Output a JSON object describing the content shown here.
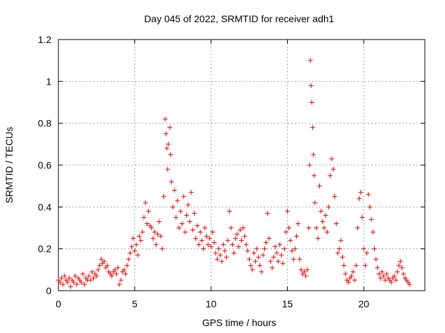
{
  "chart_data": {
    "type": "scatter",
    "title": "Day 045 of 2022, SRMTID for receiver adh1",
    "xlabel": "GPS time / hours",
    "ylabel": "SRMTID / TECUs",
    "xlim": [
      0,
      24
    ],
    "ylim": [
      0,
      1.2
    ],
    "x_ticks": [
      0,
      5,
      10,
      15,
      20
    ],
    "x_tick_labels": [
      "0",
      "5",
      "10",
      "15",
      "20"
    ],
    "y_ticks": [
      0,
      0.2,
      0.4,
      0.6,
      0.8,
      1.0,
      1.2
    ],
    "y_tick_labels": [
      "0",
      "0.2",
      "0.4",
      "0.6",
      "0.8",
      "1",
      "1.2"
    ],
    "grid": true,
    "marker": "+",
    "color": "#e00000",
    "series": [
      {
        "name": "adh1",
        "points": [
          [
            0.0,
            0.05
          ],
          [
            0.1,
            0.04
          ],
          [
            0.2,
            0.06
          ],
          [
            0.3,
            0.03
          ],
          [
            0.4,
            0.07
          ],
          [
            0.5,
            0.05
          ],
          [
            0.6,
            0.04
          ],
          [
            0.7,
            0.06
          ],
          [
            0.8,
            0.02
          ],
          [
            0.9,
            0.05
          ],
          [
            1.0,
            0.04
          ],
          [
            1.1,
            0.07
          ],
          [
            1.2,
            0.03
          ],
          [
            1.3,
            0.06
          ],
          [
            1.4,
            0.05
          ],
          [
            1.5,
            0.04
          ],
          [
            1.6,
            0.08
          ],
          [
            1.7,
            0.03
          ],
          [
            1.8,
            0.06
          ],
          [
            1.9,
            0.05
          ],
          [
            2.0,
            0.07
          ],
          [
            2.1,
            0.05
          ],
          [
            2.2,
            0.09
          ],
          [
            2.3,
            0.06
          ],
          [
            2.4,
            0.08
          ],
          [
            2.5,
            0.07
          ],
          [
            2.6,
            0.1
          ],
          [
            2.7,
            0.12
          ],
          [
            2.8,
            0.15
          ],
          [
            2.9,
            0.13
          ],
          [
            3.0,
            0.14
          ],
          [
            3.1,
            0.11
          ],
          [
            3.2,
            0.12
          ],
          [
            3.3,
            0.09
          ],
          [
            3.4,
            0.08
          ],
          [
            3.5,
            0.07
          ],
          [
            3.6,
            0.09
          ],
          [
            3.7,
            0.1
          ],
          [
            3.8,
            0.08
          ],
          [
            3.9,
            0.11
          ],
          [
            4.0,
            0.03
          ],
          [
            4.1,
            0.05
          ],
          [
            4.2,
            0.09
          ],
          [
            4.3,
            0.1
          ],
          [
            4.4,
            0.08
          ],
          [
            4.5,
            0.12
          ],
          [
            4.6,
            0.15
          ],
          [
            4.7,
            0.18
          ],
          [
            4.8,
            0.21
          ],
          [
            4.9,
            0.25
          ],
          [
            5.0,
            0.19
          ],
          [
            5.1,
            0.22
          ],
          [
            5.2,
            0.17
          ],
          [
            5.3,
            0.26
          ],
          [
            5.4,
            0.24
          ],
          [
            5.5,
            0.28
          ],
          [
            5.6,
            0.35
          ],
          [
            5.7,
            0.42
          ],
          [
            5.8,
            0.32
          ],
          [
            5.9,
            0.38
          ],
          [
            6.0,
            0.31
          ],
          [
            6.1,
            0.3
          ],
          [
            6.2,
            0.25
          ],
          [
            6.3,
            0.28
          ],
          [
            6.4,
            0.22
          ],
          [
            6.5,
            0.27
          ],
          [
            6.6,
            0.33
          ],
          [
            6.7,
            0.26
          ],
          [
            6.8,
            0.2
          ],
          [
            6.9,
            0.45
          ],
          [
            7.0,
            0.82
          ],
          [
            7.05,
            0.75
          ],
          [
            7.1,
            0.68
          ],
          [
            7.15,
            0.58
          ],
          [
            7.2,
            0.7
          ],
          [
            7.3,
            0.78
          ],
          [
            7.35,
            0.65
          ],
          [
            7.4,
            0.52
          ],
          [
            7.5,
            0.4
          ],
          [
            7.6,
            0.48
          ],
          [
            7.7,
            0.35
          ],
          [
            7.8,
            0.43
          ],
          [
            7.9,
            0.3
          ],
          [
            8.0,
            0.38
          ],
          [
            8.1,
            0.32
          ],
          [
            8.2,
            0.45
          ],
          [
            8.3,
            0.28
          ],
          [
            8.4,
            0.36
          ],
          [
            8.5,
            0.41
          ],
          [
            8.6,
            0.33
          ],
          [
            8.7,
            0.47
          ],
          [
            8.8,
            0.29
          ],
          [
            8.9,
            0.37
          ],
          [
            9.0,
            0.25
          ],
          [
            9.1,
            0.31
          ],
          [
            9.2,
            0.22
          ],
          [
            9.3,
            0.28
          ],
          [
            9.4,
            0.24
          ],
          [
            9.5,
            0.2
          ],
          [
            9.6,
            0.3
          ],
          [
            9.7,
            0.26
          ],
          [
            9.8,
            0.22
          ],
          [
            9.9,
            0.25
          ],
          [
            10.0,
            0.21
          ],
          [
            10.1,
            0.28
          ],
          [
            10.2,
            0.23
          ],
          [
            10.3,
            0.18
          ],
          [
            10.4,
            0.15
          ],
          [
            10.5,
            0.2
          ],
          [
            10.6,
            0.17
          ],
          [
            10.7,
            0.14
          ],
          [
            10.8,
            0.22
          ],
          [
            10.9,
            0.19
          ],
          [
            11.0,
            0.16
          ],
          [
            11.1,
            0.24
          ],
          [
            11.2,
            0.38
          ],
          [
            11.3,
            0.3
          ],
          [
            11.4,
            0.22
          ],
          [
            11.5,
            0.18
          ],
          [
            11.6,
            0.25
          ],
          [
            11.7,
            0.27
          ],
          [
            11.8,
            0.21
          ],
          [
            11.9,
            0.29
          ],
          [
            12.0,
            0.24
          ],
          [
            12.1,
            0.3
          ],
          [
            12.2,
            0.26
          ],
          [
            12.3,
            0.22
          ],
          [
            12.4,
            0.19
          ],
          [
            12.5,
            0.15
          ],
          [
            12.6,
            0.12
          ],
          [
            12.7,
            0.1
          ],
          [
            12.8,
            0.18
          ],
          [
            12.9,
            0.14
          ],
          [
            13.0,
            0.2
          ],
          [
            13.1,
            0.16
          ],
          [
            13.2,
            0.12
          ],
          [
            13.3,
            0.09
          ],
          [
            13.4,
            0.17
          ],
          [
            13.5,
            0.2
          ],
          [
            13.6,
            0.23
          ],
          [
            13.7,
            0.37
          ],
          [
            13.8,
            0.25
          ],
          [
            13.9,
            0.14
          ],
          [
            14.0,
            0.11
          ],
          [
            14.1,
            0.16
          ],
          [
            14.2,
            0.21
          ],
          [
            14.3,
            0.18
          ],
          [
            14.4,
            0.14
          ],
          [
            14.5,
            0.22
          ],
          [
            14.6,
            0.17
          ],
          [
            14.7,
            0.13
          ],
          [
            14.8,
            0.2
          ],
          [
            14.9,
            0.28
          ],
          [
            15.0,
            0.38
          ],
          [
            15.1,
            0.3
          ],
          [
            15.2,
            0.24
          ],
          [
            15.3,
            0.19
          ],
          [
            15.4,
            0.15
          ],
          [
            15.5,
            0.2
          ],
          [
            15.6,
            0.26
          ],
          [
            15.7,
            0.32
          ],
          [
            15.8,
            0.15
          ],
          [
            15.9,
            0.1
          ],
          [
            16.0,
            0.08
          ],
          [
            16.1,
            0.09
          ],
          [
            16.2,
            0.07
          ],
          [
            16.3,
            0.1
          ],
          [
            16.4,
            0.3
          ],
          [
            16.45,
            0.6
          ],
          [
            16.5,
            1.1
          ],
          [
            16.55,
            0.98
          ],
          [
            16.6,
            0.9
          ],
          [
            16.65,
            0.78
          ],
          [
            16.7,
            0.65
          ],
          [
            16.75,
            0.55
          ],
          [
            16.8,
            0.42
          ],
          [
            16.9,
            0.3
          ],
          [
            17.0,
            0.25
          ],
          [
            17.1,
            0.5
          ],
          [
            17.2,
            0.38
          ],
          [
            17.3,
            0.33
          ],
          [
            17.4,
            0.3
          ],
          [
            17.5,
            0.36
          ],
          [
            17.6,
            0.28
          ],
          [
            17.7,
            0.4
          ],
          [
            17.8,
            0.55
          ],
          [
            17.9,
            0.63
          ],
          [
            18.0,
            0.58
          ],
          [
            18.1,
            0.45
          ],
          [
            18.2,
            0.32
          ],
          [
            18.3,
            0.18
          ],
          [
            18.4,
            0.2
          ],
          [
            18.5,
            0.24
          ],
          [
            18.6,
            0.16
          ],
          [
            18.7,
            0.12
          ],
          [
            18.8,
            0.08
          ],
          [
            18.9,
            0.05
          ],
          [
            19.0,
            0.04
          ],
          [
            19.1,
            0.06
          ],
          [
            19.2,
            0.07
          ],
          [
            19.3,
            0.09
          ],
          [
            19.4,
            0.05
          ],
          [
            19.5,
            0.12
          ],
          [
            19.6,
            0.3
          ],
          [
            19.7,
            0.44
          ],
          [
            19.8,
            0.47
          ],
          [
            19.9,
            0.35
          ],
          [
            20.0,
            0.2
          ],
          [
            20.1,
            0.12
          ],
          [
            20.2,
            0.18
          ],
          [
            20.3,
            0.46
          ],
          [
            20.4,
            0.4
          ],
          [
            20.5,
            0.34
          ],
          [
            20.6,
            0.28
          ],
          [
            20.7,
            0.2
          ],
          [
            20.8,
            0.15
          ],
          [
            20.9,
            0.11
          ],
          [
            21.0,
            0.08
          ],
          [
            21.1,
            0.06
          ],
          [
            21.2,
            0.09
          ],
          [
            21.3,
            0.07
          ],
          [
            21.4,
            0.05
          ],
          [
            21.5,
            0.08
          ],
          [
            21.6,
            0.06
          ],
          [
            21.7,
            0.05
          ],
          [
            21.8,
            0.04
          ],
          [
            21.9,
            0.06
          ],
          [
            22.0,
            0.07
          ],
          [
            22.1,
            0.05
          ],
          [
            22.2,
            0.09
          ],
          [
            22.3,
            0.12
          ],
          [
            22.4,
            0.14
          ],
          [
            22.5,
            0.11
          ],
          [
            22.6,
            0.08
          ],
          [
            22.7,
            0.06
          ],
          [
            22.8,
            0.05
          ],
          [
            22.9,
            0.04
          ],
          [
            23.0,
            0.03
          ]
        ]
      }
    ]
  }
}
